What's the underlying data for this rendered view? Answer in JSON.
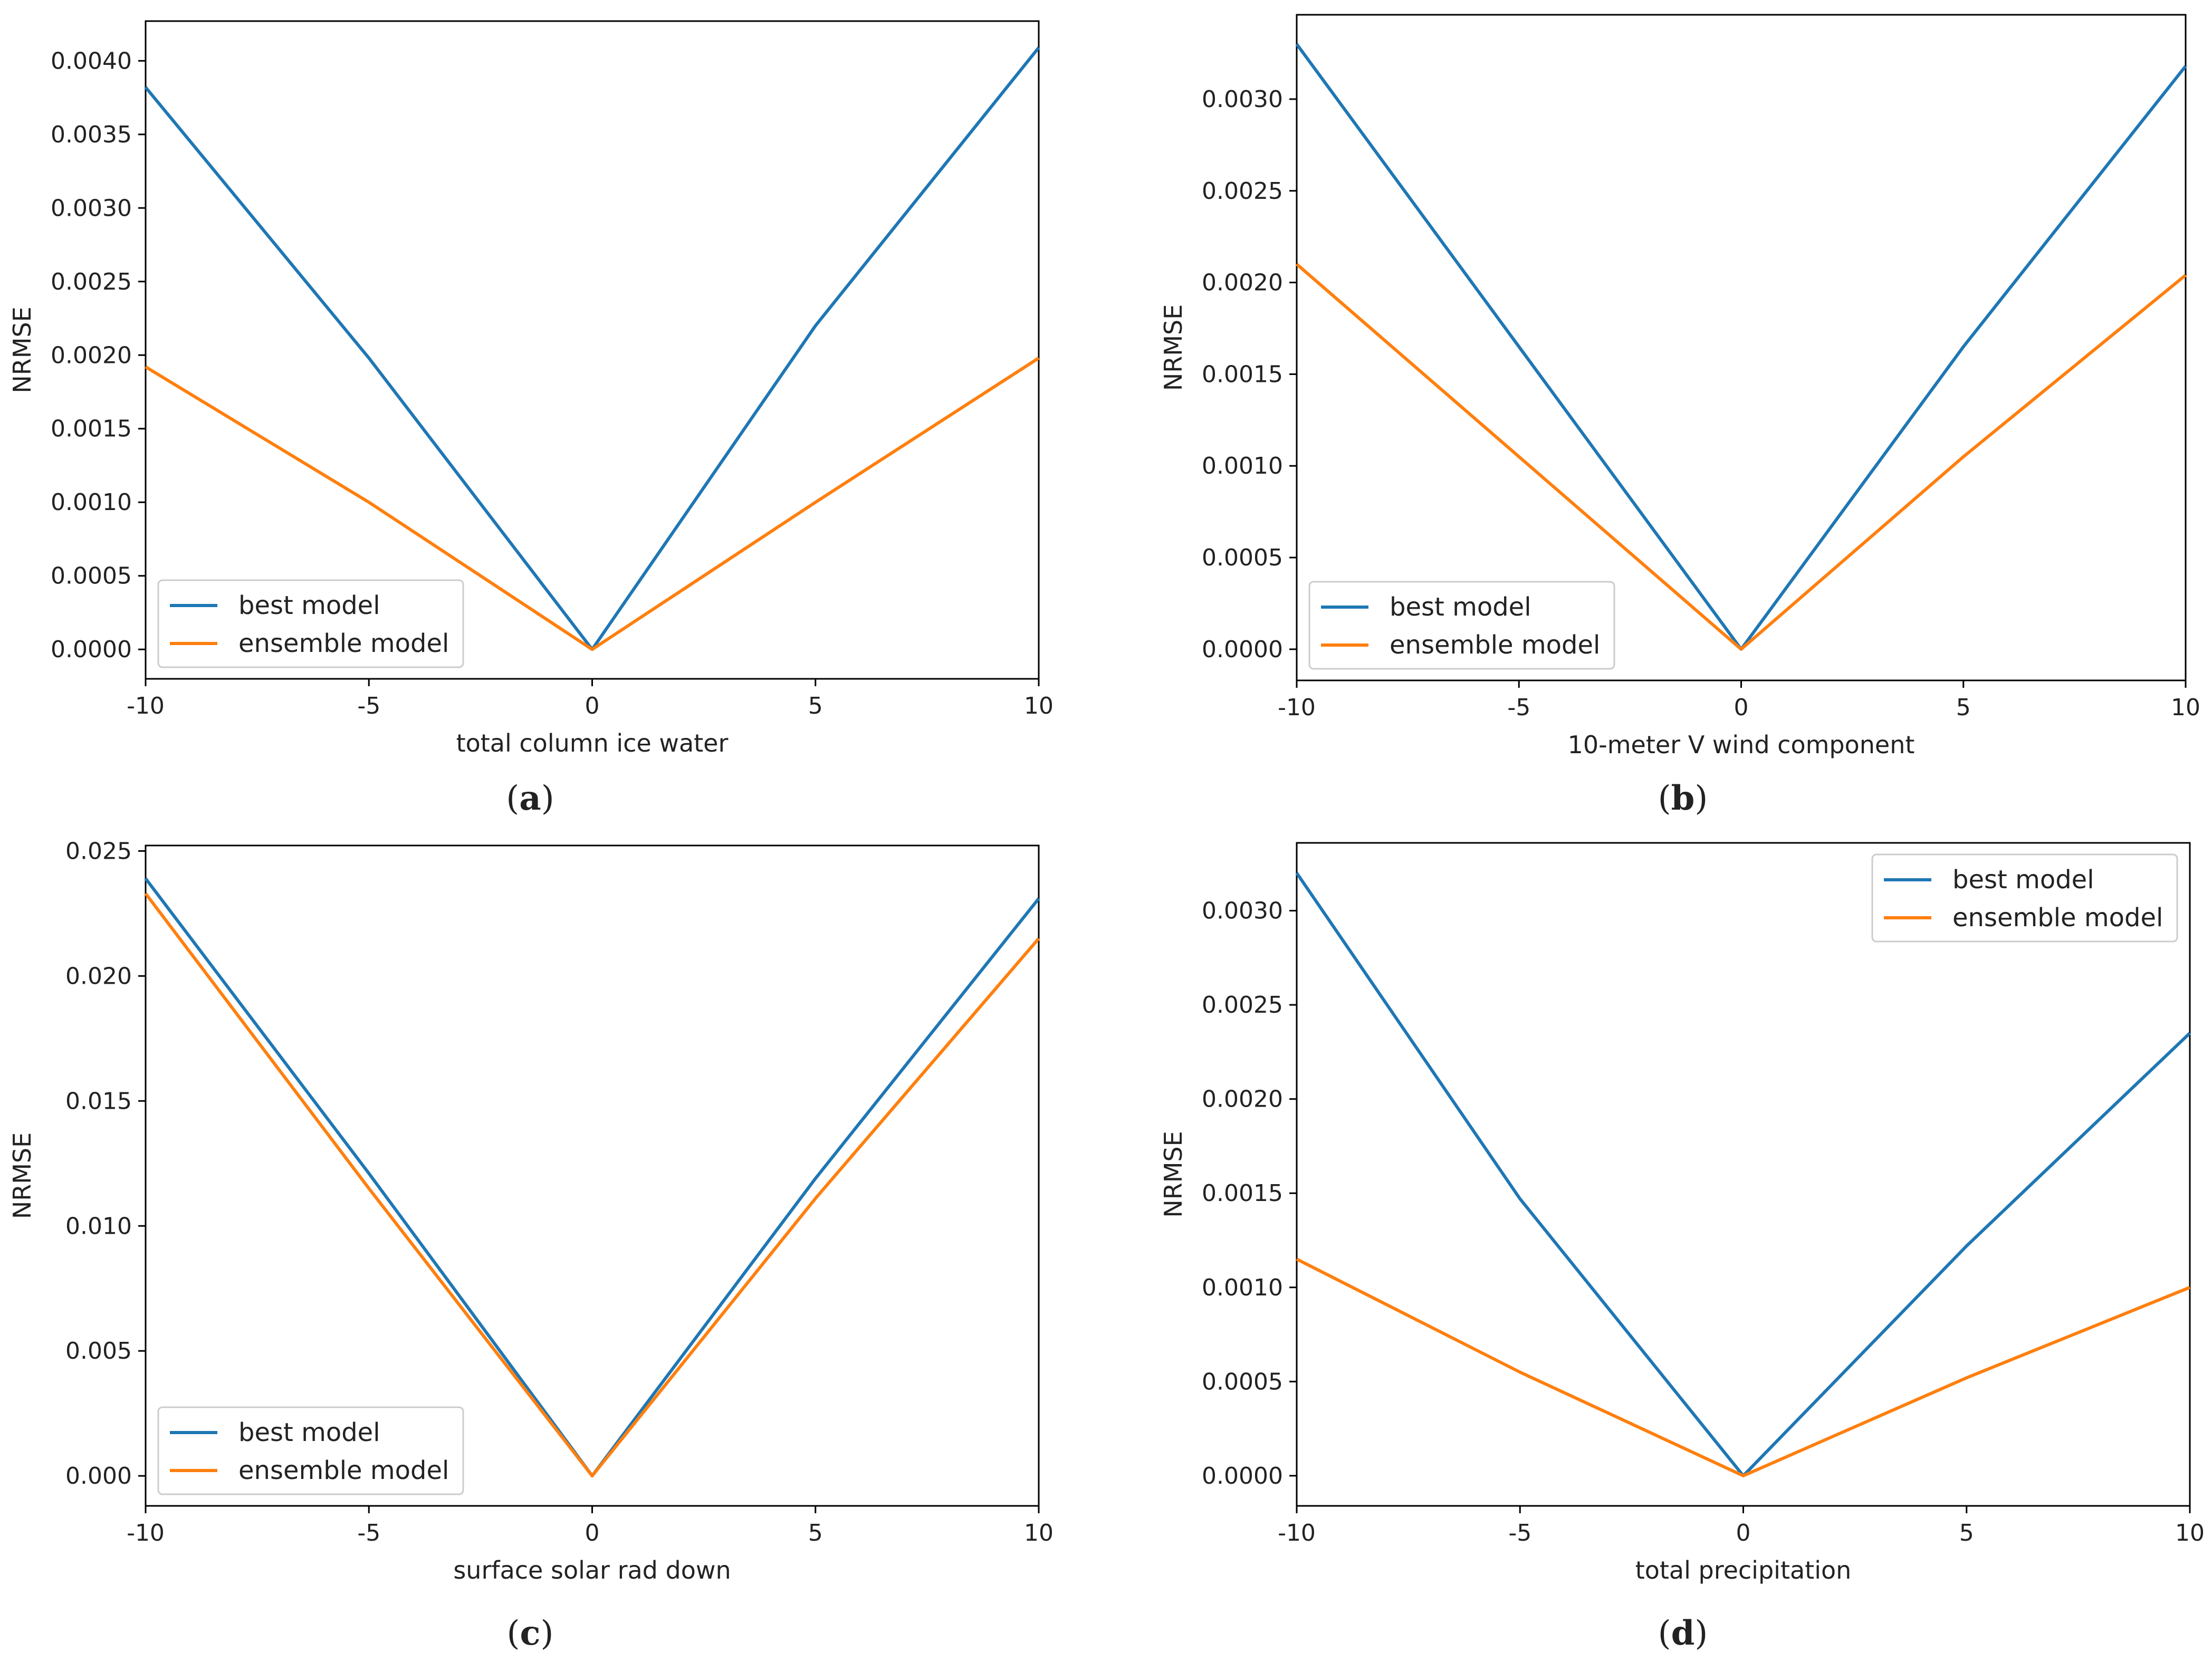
{
  "chart_data": [
    {
      "panel": "a",
      "caption_letter": "a",
      "type": "line",
      "xlabel": "total column ice water",
      "ylabel": "NRMSE",
      "x": [
        -10,
        -5,
        0,
        5,
        10
      ],
      "xticks": [
        -10,
        -5,
        0,
        5,
        10
      ],
      "xtick_labels": [
        "-10",
        "-5",
        "0",
        "5",
        "10"
      ],
      "xlim": [
        -10,
        10
      ],
      "ylim": [
        -0.0002,
        0.00427
      ],
      "yticks": [
        0,
        0.0005,
        0.001,
        0.0015,
        0.002,
        0.0025,
        0.003,
        0.0035,
        0.004
      ],
      "ytick_labels": [
        "0.0000",
        "0.0005",
        "0.0010",
        "0.0015",
        "0.0020",
        "0.0025",
        "0.0030",
        "0.0035",
        "0.0040"
      ],
      "legend_position": "lower-left",
      "series": [
        {
          "name": "best model",
          "color": "#1f77b4",
          "values": [
            0.00382,
            0.00198,
            0.0,
            0.0022,
            0.00409
          ]
        },
        {
          "name": "ensemble model",
          "color": "#ff7f0e",
          "values": [
            0.00192,
            0.001,
            0.0,
            0.001,
            0.00198
          ]
        }
      ]
    },
    {
      "panel": "b",
      "caption_letter": "b",
      "type": "line",
      "xlabel": "10-meter V wind component",
      "ylabel": "NRMSE",
      "x": [
        -10,
        -5,
        0,
        5,
        10
      ],
      "xticks": [
        -10,
        -5,
        0,
        5,
        10
      ],
      "xtick_labels": [
        "-10",
        "-5",
        "0",
        "5",
        "10"
      ],
      "xlim": [
        -10,
        10
      ],
      "ylim": [
        -0.00017,
        0.00346
      ],
      "yticks": [
        0,
        0.0005,
        0.001,
        0.0015,
        0.002,
        0.0025,
        0.003
      ],
      "ytick_labels": [
        "0.0000",
        "0.0005",
        "0.0010",
        "0.0015",
        "0.0020",
        "0.0025",
        "0.0030"
      ],
      "legend_position": "lower-left",
      "series": [
        {
          "name": "best model",
          "color": "#1f77b4",
          "values": [
            0.0033,
            0.00165,
            0.0,
            0.00165,
            0.00318
          ]
        },
        {
          "name": "ensemble model",
          "color": "#ff7f0e",
          "values": [
            0.0021,
            0.00105,
            0.0,
            0.00105,
            0.00204
          ]
        }
      ]
    },
    {
      "panel": "c",
      "caption_letter": "c",
      "type": "line",
      "xlabel": "surface solar rad down",
      "ylabel": "NRMSE",
      "x": [
        -10,
        -5,
        0,
        5,
        10
      ],
      "xticks": [
        -10,
        -5,
        0,
        5,
        10
      ],
      "xtick_labels": [
        "-10",
        "-5",
        "0",
        "5",
        "10"
      ],
      "xlim": [
        -10,
        10
      ],
      "ylim": [
        -0.0012,
        0.02522
      ],
      "yticks": [
        0,
        0.005,
        0.01,
        0.015,
        0.02,
        0.025
      ],
      "ytick_labels": [
        "0.000",
        "0.005",
        "0.010",
        "0.015",
        "0.020",
        "0.025"
      ],
      "legend_position": "lower-left",
      "series": [
        {
          "name": "best model",
          "color": "#1f77b4",
          "values": [
            0.0239,
            0.0121,
            0.0,
            0.0119,
            0.0231
          ]
        },
        {
          "name": "ensemble model",
          "color": "#ff7f0e",
          "values": [
            0.0233,
            0.0115,
            0.0,
            0.0111,
            0.0215
          ]
        }
      ]
    },
    {
      "panel": "d",
      "caption_letter": "d",
      "type": "line",
      "xlabel": "total precipitation",
      "ylabel": "NRMSE",
      "x": [
        -10,
        -5,
        0,
        5,
        10
      ],
      "xticks": [
        -10,
        -5,
        0,
        5,
        10
      ],
      "xtick_labels": [
        "-10",
        "-5",
        "0",
        "5",
        "10"
      ],
      "xlim": [
        -10,
        10
      ],
      "ylim": [
        -0.00016,
        0.00336
      ],
      "yticks": [
        0,
        0.0005,
        0.001,
        0.0015,
        0.002,
        0.0025,
        0.003
      ],
      "ytick_labels": [
        "0.0000",
        "0.0005",
        "0.0010",
        "0.0015",
        "0.0020",
        "0.0025",
        "0.0030"
      ],
      "legend_position": "top-right",
      "series": [
        {
          "name": "best model",
          "color": "#1f77b4",
          "values": [
            0.0032,
            0.00147,
            0.0,
            0.00122,
            0.00235
          ]
        },
        {
          "name": "ensemble model",
          "color": "#ff7f0e",
          "values": [
            0.00115,
            0.00055,
            0.0,
            0.00052,
            0.001
          ]
        }
      ]
    }
  ]
}
